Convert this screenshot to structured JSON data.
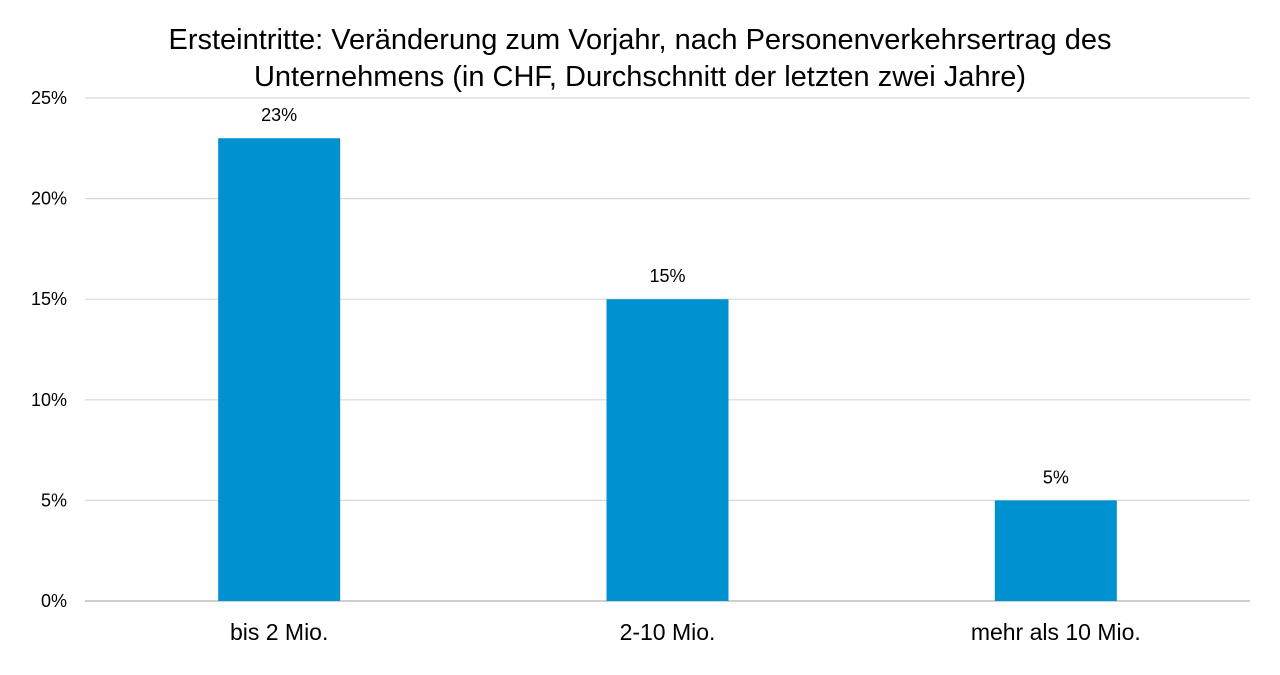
{
  "chart_data": {
    "type": "bar",
    "title_lines": [
      "Ersteintritte: Veränderung zum Vorjahr, nach Personenverkehrsertrag des",
      "Unternehmens (in CHF, Durchschnitt der letzten zwei Jahre)"
    ],
    "categories": [
      "bis 2 Mio.",
      "2-10 Mio.",
      "mehr als 10 Mio."
    ],
    "values": [
      23,
      15,
      5
    ],
    "data_labels": [
      "23%",
      "15%",
      "5%"
    ],
    "ylim": [
      0,
      25
    ],
    "yticks": [
      {
        "value": 0,
        "label": "0%"
      },
      {
        "value": 5,
        "label": "5%"
      },
      {
        "value": 10,
        "label": "10%"
      },
      {
        "value": 15,
        "label": "15%"
      },
      {
        "value": 20,
        "label": "20%"
      },
      {
        "value": 25,
        "label": "25%"
      }
    ],
    "grid": true,
    "legend": "none",
    "colors": {
      "bar": "#0091D0",
      "grid": "#D9D9D9",
      "axis": "#BFBFBF"
    }
  }
}
